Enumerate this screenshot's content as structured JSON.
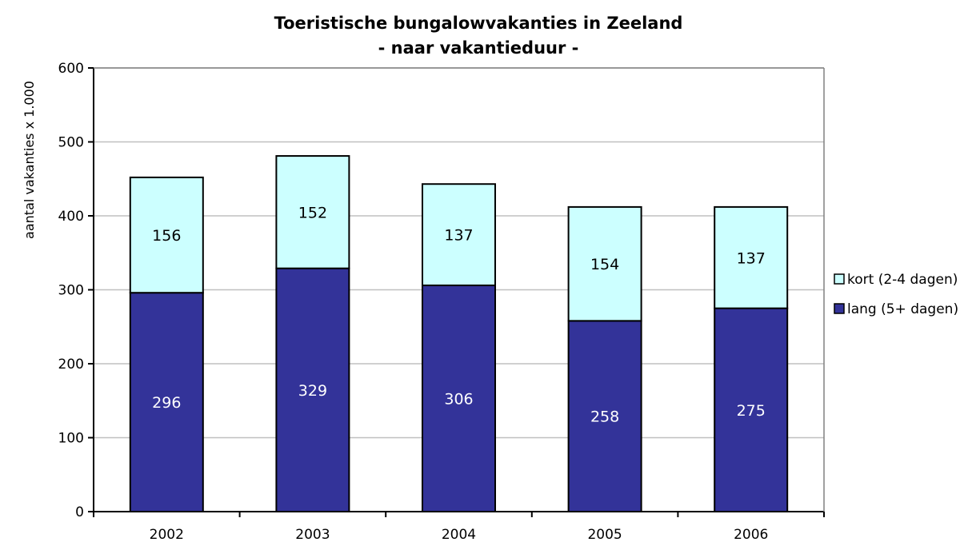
{
  "chart_data": {
    "type": "bar",
    "stacked": true,
    "title": "Toeristische bungalowvakanties in Zeeland",
    "subtitle": "- naar vakantieduur -",
    "xlabel": "",
    "ylabel": "aantal vakanties x 1.000",
    "ylim": [
      0,
      600
    ],
    "yticks": [
      0,
      100,
      200,
      300,
      400,
      500,
      600
    ],
    "grid": true,
    "legend_position": "right",
    "categories": [
      "2002",
      "2003",
      "2004",
      "2005",
      "2006"
    ],
    "series": [
      {
        "name": "lang (5+ dagen)",
        "values": [
          296,
          329,
          306,
          258,
          275
        ],
        "color": "#333399",
        "label_color": "#ffffff"
      },
      {
        "name": "kort (2-4 dagen)",
        "values": [
          156,
          152,
          137,
          154,
          137
        ],
        "color": "#ccffff",
        "label_color": "#000000"
      }
    ],
    "legend_order": [
      1,
      0
    ]
  }
}
